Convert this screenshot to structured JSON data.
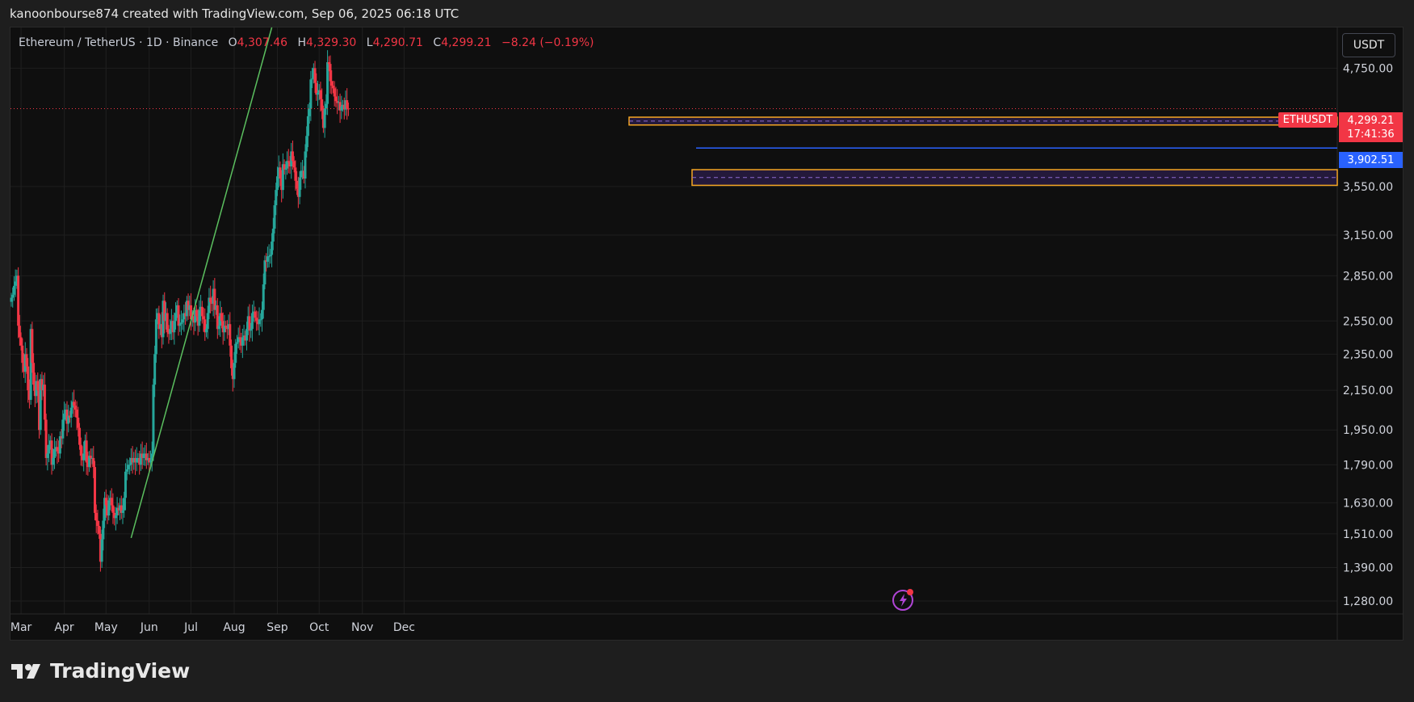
{
  "caption": "kanoonbourse874 created with TradingView.com, Sep 06, 2025 06:18 UTC",
  "legend": {
    "symbol": "Ethereum / TetherUS · 1D · Binance",
    "o_label": "O",
    "o_value": "4,307.46",
    "h_label": "H",
    "h_value": "4,329.30",
    "l_label": "L",
    "l_value": "4,290.71",
    "c_label": "C",
    "c_value": "4,299.21",
    "change": "−8.24 (−0.19%)"
  },
  "currency": "USDT",
  "brand": "TradingView",
  "price_tags": {
    "symbol": "ETHUSDT",
    "last_price": "4,299.21",
    "countdown": "17:41:36",
    "level": "3,902.51"
  },
  "colors": {
    "up": "#26a69a",
    "down": "#f23645",
    "trendline": "#5bbf5f",
    "zone": "#f5a623",
    "level_line": "#2962ff",
    "background": "#0f0f0f"
  },
  "chart_data": {
    "type": "candlestick",
    "x_ticks": [
      "Mar",
      "Apr",
      "May",
      "Jun",
      "Jul",
      "Aug",
      "Sep",
      "Oct",
      "Nov",
      "Dec"
    ],
    "y_ticks": [
      "4,750.00",
      "3,550.00",
      "3,150.00",
      "2,850.00",
      "2,550.00",
      "2,350.00",
      "2,150.00",
      "1,950.00",
      "1,790.00",
      "1,630.00",
      "1,510.00",
      "1,390.00",
      "1,280.00"
    ],
    "y_tick_values": [
      4750,
      3550,
      3150,
      2850,
      2550,
      2350,
      2150,
      1950,
      1790,
      1630,
      1510,
      1390,
      1280
    ],
    "ylim": [
      1240,
      5250
    ],
    "y_scale": "log",
    "last_price": 4299.21,
    "horizontal_level": 3902.51,
    "zones": [
      {
        "low": 4130,
        "high": 4210
      },
      {
        "low": 3560,
        "high": 3700
      }
    ],
    "trendline": {
      "start": [
        "2025-05-19",
        1495
      ],
      "end": [
        "2025-08-28",
        5250
      ]
    },
    "closes": [
      2700,
      2720,
      2780,
      2810,
      2850,
      2520,
      2450,
      2400,
      2300,
      2250,
      2350,
      2280,
      2150,
      2100,
      2500,
      2300,
      2180,
      2120,
      2200,
      2150,
      1950,
      2210,
      2150,
      2180,
      2000,
      1820,
      1840,
      1880,
      1900,
      1790,
      1820,
      1860,
      1870,
      1850,
      1840,
      1920,
      1910,
      2000,
      2030,
      2050,
      1980,
      2020,
      2010,
      2060,
      2090,
      2070,
      2050,
      2010,
      1960,
      1880,
      1830,
      1810,
      1840,
      1900,
      1800,
      1780,
      1830,
      1820,
      1820,
      1780,
      1590,
      1560,
      1540,
      1510,
      1410,
      1490,
      1560,
      1650,
      1620,
      1580,
      1640,
      1650,
      1620,
      1590,
      1570,
      1580,
      1610,
      1600,
      1620,
      1590,
      1600,
      1650,
      1760,
      1770,
      1790,
      1790,
      1820,
      1800,
      1820,
      1800,
      1820,
      1820,
      1790,
      1840,
      1820,
      1840,
      1840,
      1810,
      1820,
      1800,
      1810,
      1840,
      2180,
      2350,
      2560,
      2600,
      2500,
      2530,
      2450,
      2680,
      2550,
      2600,
      2480,
      2470,
      2500,
      2550,
      2480,
      2550,
      2600,
      2650,
      2520,
      2530,
      2540,
      2560,
      2600,
      2580,
      2680,
      2620,
      2650,
      2560,
      2580,
      2540,
      2620,
      2580,
      2520,
      2620,
      2640,
      2580,
      2560,
      2480,
      2500,
      2600,
      2700,
      2670,
      2660,
      2760,
      2620,
      2650,
      2500,
      2520,
      2600,
      2550,
      2480,
      2520,
      2510,
      2500,
      2530,
      2400,
      2270,
      2210,
      2300,
      2410,
      2420,
      2450,
      2440,
      2400,
      2450,
      2460,
      2430,
      2500,
      2580,
      2490,
      2500,
      2600,
      2610,
      2570,
      2550,
      2530,
      2560,
      2560,
      2620,
      2790,
      2960,
      2950,
      2990,
      2990,
      3000,
      3100,
      3200,
      3390,
      3520,
      3640,
      3720,
      3620,
      3520,
      3750,
      3700,
      3710,
      3780,
      3770,
      3730,
      3870,
      3780,
      3720,
      3600,
      3530,
      3460,
      3630,
      3690,
      3690,
      3620,
      3870,
      4020,
      4220,
      4300,
      4620,
      4630,
      4750,
      4580,
      4450,
      4470,
      4500,
      4400,
      4280,
      4100,
      4300,
      4350,
      4820,
      4800,
      4600,
      4550,
      4520,
      4430,
      4380,
      4360,
      4370,
      4280,
      4320,
      4340,
      4290,
      4390,
      4300,
      4299
    ]
  }
}
